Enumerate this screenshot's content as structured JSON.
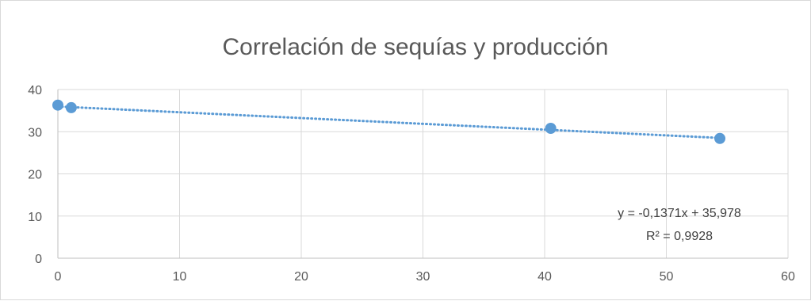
{
  "chart_data": {
    "type": "scatter",
    "title": "Correlación de sequías y producción",
    "xlabel": "",
    "ylabel": "",
    "xlim": [
      0,
      60
    ],
    "ylim": [
      0,
      40
    ],
    "x_ticks": [
      0,
      10,
      20,
      30,
      40,
      50,
      60
    ],
    "y_ticks": [
      0,
      10,
      20,
      30,
      40
    ],
    "grid": true,
    "legend": "none",
    "series": [
      {
        "points": [
          {
            "x": 0,
            "y": 36.3
          },
          {
            "x": 1.1,
            "y": 35.7
          },
          {
            "x": 40.5,
            "y": 30.8
          },
          {
            "x": 54.4,
            "y": 28.4
          }
        ],
        "color": "#5b9bd5"
      }
    ],
    "trendline": {
      "type": "linear",
      "slope": -0.1371,
      "intercept": 35.978,
      "x_range": [
        0,
        54.4
      ],
      "color": "#5b9bd5",
      "style": "dotted",
      "equation": "y = -0,1371x + 35,978",
      "r_squared": "R² = 0,9928"
    },
    "gridline_color": "#d9d9d9",
    "axis_color": "#bfbfbf",
    "text_color": "#595959"
  }
}
